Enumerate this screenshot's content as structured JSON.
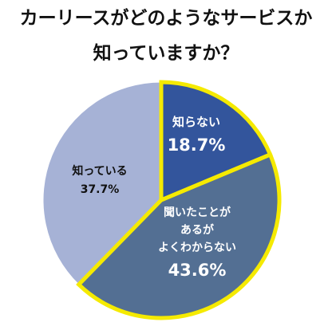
{
  "title_lines": [
    "カーリースがどのようなサービスか",
    "知っていますか？"
  ],
  "chart_data": {
    "type": "pie",
    "title": "カーリースがどのようなサービスか知っていますか？",
    "start": "12 o'clock",
    "direction": "clockwise",
    "highlight_color": "#f5ea00",
    "slices": [
      {
        "label_lines": [
          "知らない"
        ],
        "value": 18.7,
        "value_label": "18.7%",
        "color": "#33559c",
        "text_color": "#ffffff",
        "highlighted": true
      },
      {
        "label_lines": [
          "聞いたことが",
          "あるが",
          "よくわからない"
        ],
        "value": 43.6,
        "value_label": "43.6%",
        "color": "#536f93",
        "text_color": "#ffffff",
        "highlighted": true
      },
      {
        "label_lines": [
          "知っている"
        ],
        "value": 37.7,
        "value_label": "37.7%",
        "color": "#a6b2d6",
        "text_color": "#111111",
        "highlighted": false
      }
    ]
  }
}
